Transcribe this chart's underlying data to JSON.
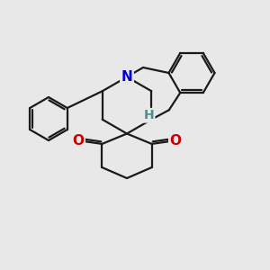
{
  "bg_color": "#e8e8e8",
  "bond_color": "#1a1a1a",
  "N_color": "#0000cc",
  "H_color": "#4a9090",
  "O_color": "#cc0000",
  "bond_width": 1.6,
  "font_size_N": 11,
  "font_size_H": 10,
  "font_size_O": 11,
  "xlim": [
    0,
    10
  ],
  "ylim": [
    0,
    10
  ]
}
